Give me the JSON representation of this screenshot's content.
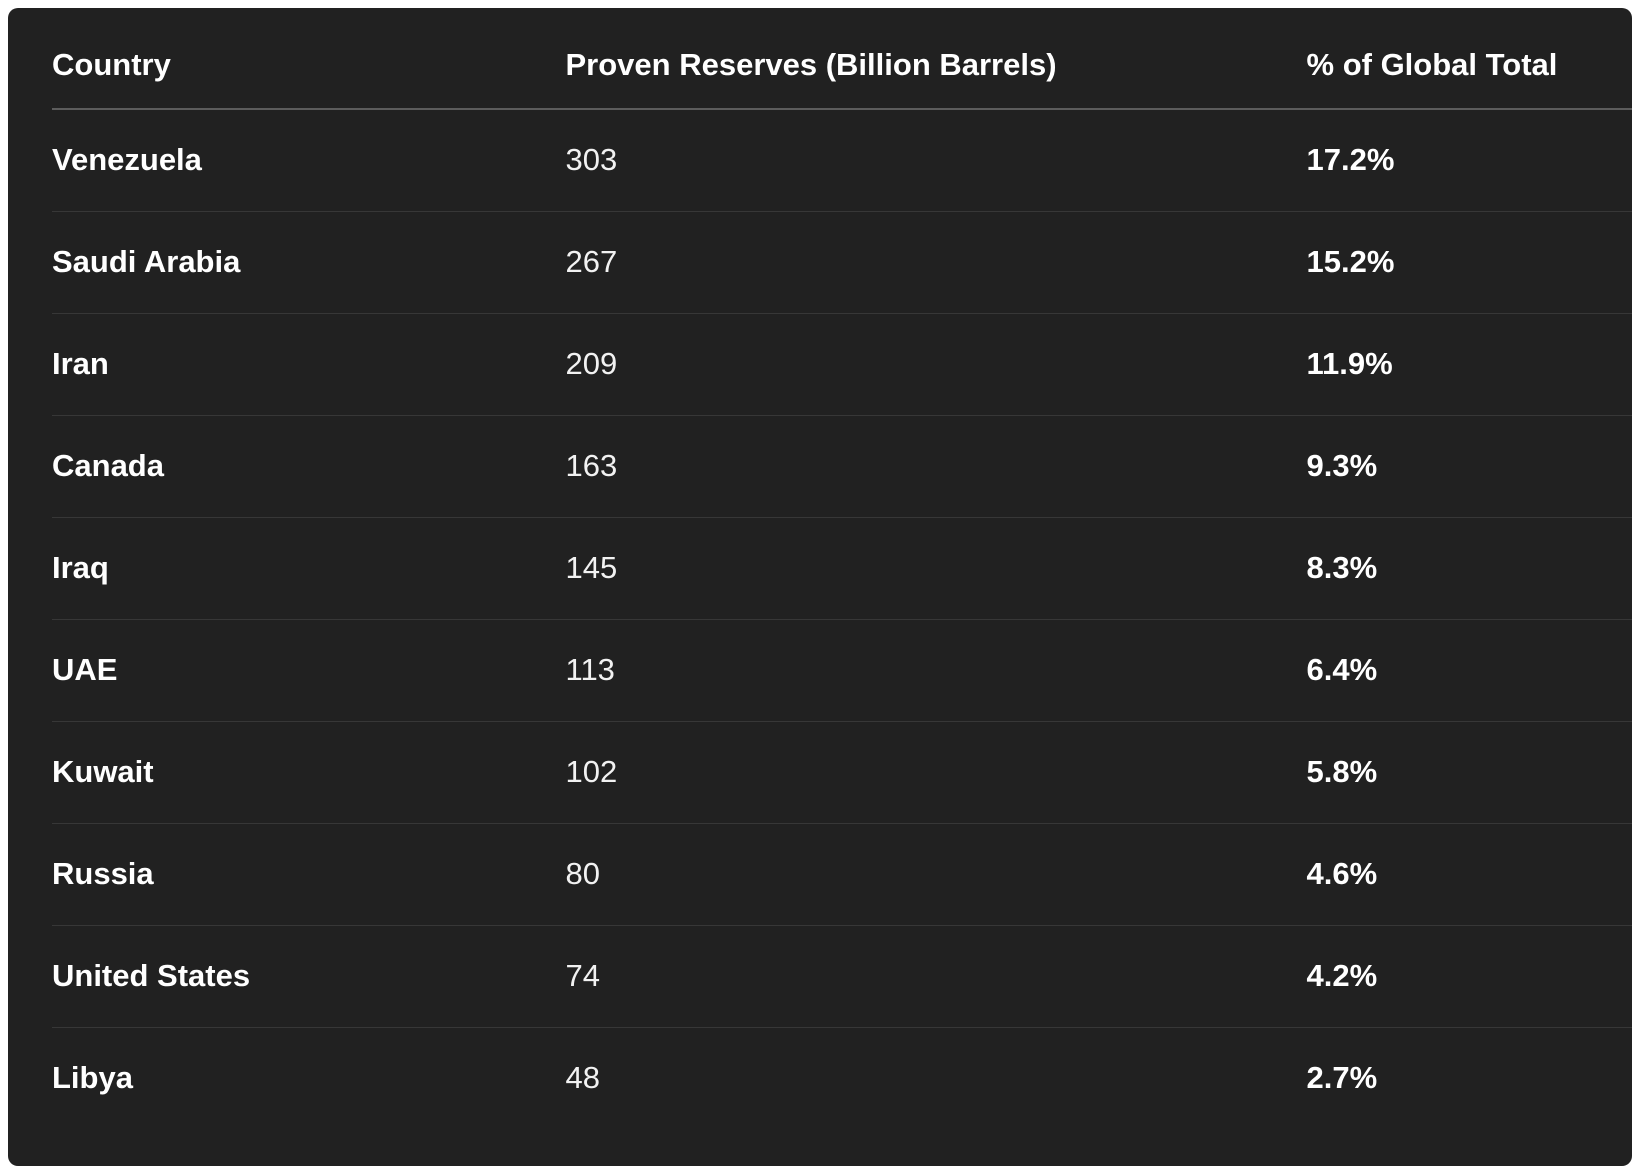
{
  "table": {
    "headers": [
      "Country",
      "Proven Reserves (Billion Barrels)",
      "% of Global Total"
    ],
    "rows": [
      {
        "country": "Venezuela",
        "reserves": "303",
        "percent": "17.2%"
      },
      {
        "country": "Saudi Arabia",
        "reserves": "267",
        "percent": "15.2%"
      },
      {
        "country": "Iran",
        "reserves": "209",
        "percent": "11.9%"
      },
      {
        "country": "Canada",
        "reserves": "163",
        "percent": "9.3%"
      },
      {
        "country": "Iraq",
        "reserves": "145",
        "percent": "8.3%"
      },
      {
        "country": "UAE",
        "reserves": "113",
        "percent": "6.4%"
      },
      {
        "country": "Kuwait",
        "reserves": "102",
        "percent": "5.8%"
      },
      {
        "country": "Russia",
        "reserves": "80",
        "percent": "4.6%"
      },
      {
        "country": "United States",
        "reserves": "74",
        "percent": "4.2%"
      },
      {
        "country": "Libya",
        "reserves": "48",
        "percent": "2.7%"
      }
    ]
  },
  "chart_data": {
    "type": "table",
    "title": "",
    "columns": [
      "Country",
      "Proven Reserves (Billion Barrels)",
      "% of Global Total"
    ],
    "rows": [
      [
        "Venezuela",
        303,
        "17.2%"
      ],
      [
        "Saudi Arabia",
        267,
        "15.2%"
      ],
      [
        "Iran",
        209,
        "11.9%"
      ],
      [
        "Canada",
        163,
        "9.3%"
      ],
      [
        "Iraq",
        145,
        "8.3%"
      ],
      [
        "UAE",
        113,
        "6.4%"
      ],
      [
        "Kuwait",
        102,
        "5.8%"
      ],
      [
        "Russia",
        80,
        "4.6%"
      ],
      [
        "United States",
        74,
        "4.2%"
      ],
      [
        "Libya",
        48,
        "2.7%"
      ]
    ]
  },
  "colors": {
    "page_background": "#ffffff",
    "card_background": "#212121",
    "header_divider": "#5c5c5c",
    "row_divider": "#373737",
    "text": "#ffffff"
  }
}
